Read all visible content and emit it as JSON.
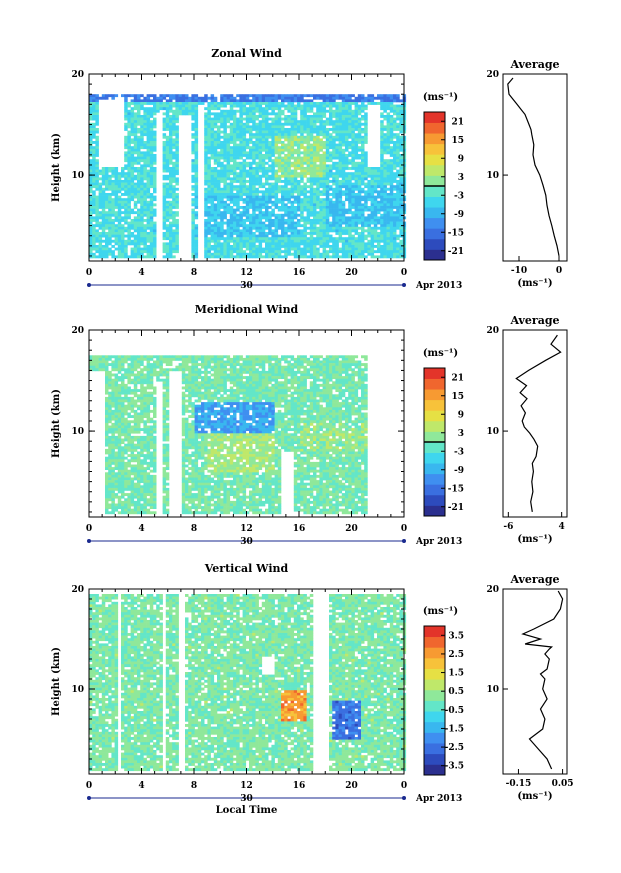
{
  "colors": {
    "colormap": [
      "#2b2f8f",
      "#2d4bbd",
      "#3a6fe0",
      "#3f8ff0",
      "#39b7ef",
      "#3fd6ee",
      "#63e6c8",
      "#8fe89a",
      "#bfe86a",
      "#e6e044",
      "#f7c23a",
      "#f79a32",
      "#f0662e",
      "#e3342a"
    ]
  },
  "panels": [
    {
      "key": "zonal",
      "title": "Zonal Wind",
      "ylabel": "Height (km)",
      "yticks": [
        "20",
        "10"
      ],
      "xticks": [
        "0",
        "4",
        "8",
        "12",
        "16",
        "20",
        "0"
      ],
      "date_day": "30",
      "date_label": "Apr 2013",
      "xlabel": "",
      "cbar_unit": "(ms⁻¹)",
      "cbar_ticks": [
        "21",
        "15",
        "9",
        "3",
        "-3",
        "-9",
        "-15",
        "-21"
      ],
      "avg_title": "Average",
      "avg_yticks": [
        "20",
        "10"
      ],
      "avg_xticks": [
        "-10",
        "0"
      ],
      "avg_xlabel": "(ms⁻¹)"
    },
    {
      "key": "meridional",
      "title": "Meridional Wind",
      "ylabel": "Height (km)",
      "yticks": [
        "20",
        "10"
      ],
      "xticks": [
        "0",
        "4",
        "8",
        "12",
        "16",
        "20",
        "0"
      ],
      "date_day": "30",
      "date_label": "Apr 2013",
      "xlabel": "",
      "cbar_unit": "(ms⁻¹)",
      "cbar_ticks": [
        "21",
        "15",
        "9",
        "3",
        "-3",
        "-9",
        "-15",
        "-21"
      ],
      "avg_title": "Average",
      "avg_yticks": [
        "20",
        "10"
      ],
      "avg_xticks": [
        "-6",
        "4"
      ],
      "avg_xlabel": "(ms⁻¹)"
    },
    {
      "key": "vertical",
      "title": "Vertical Wind",
      "ylabel": "Height (km)",
      "yticks": [
        "20",
        "10"
      ],
      "xticks": [
        "0",
        "4",
        "8",
        "12",
        "16",
        "20",
        "0"
      ],
      "date_day": "30",
      "date_label": "Apr 2013",
      "xlabel": "Local Time",
      "cbar_unit": "(ms⁻¹)",
      "cbar_ticks": [
        "3.5",
        "2.5",
        "1.5",
        "0.5",
        "-0.5",
        "-1.5",
        "-2.5",
        "-3.5"
      ],
      "avg_title": "Average",
      "avg_yticks": [
        "20",
        "10"
      ],
      "avg_xticks": [
        "-0.15",
        "0.05"
      ],
      "avg_xlabel": "(ms⁻¹)"
    }
  ],
  "chart_data": [
    {
      "type": "heatmap",
      "title": "Zonal Wind",
      "xlabel": "",
      "ylabel": "Height (km)",
      "xlim": [
        0,
        24
      ],
      "ylim": [
        1.5,
        20
      ],
      "x_units": "local time (h), 30 Apr 2013",
      "colorbar_range": [
        -24,
        24
      ],
      "colorbar_unit": "(ms⁻¹)",
      "data_cutoff_km": 18,
      "blocks": [
        {
          "x": [
            0,
            24
          ],
          "y": [
            2,
            17.5
          ],
          "value": -4
        },
        {
          "x": [
            8,
            16
          ],
          "y": [
            4,
            8
          ],
          "value": -7
        },
        {
          "x": [
            18,
            24
          ],
          "y": [
            5,
            9
          ],
          "value": -7
        },
        {
          "x": [
            14,
            18
          ],
          "y": [
            10,
            14
          ],
          "value": 2
        },
        {
          "x": [
            0,
            24
          ],
          "y": [
            17.3,
            18
          ],
          "value": -14
        }
      ],
      "gaps": [
        {
          "x": [
            0.5,
            2.5
          ],
          "y": [
            11,
            17.5
          ]
        },
        {
          "x": [
            5,
            5.4
          ],
          "y": [
            2,
            16
          ]
        },
        {
          "x": [
            6.8,
            7.8
          ],
          "y": [
            2,
            16
          ]
        },
        {
          "x": [
            8.2,
            8.6
          ],
          "y": [
            2,
            17
          ]
        },
        {
          "x": [
            21,
            22
          ],
          "y": [
            11,
            17
          ]
        }
      ]
    },
    {
      "type": "line",
      "title": "Average",
      "xlabel": "(ms⁻¹)",
      "x_range": [
        -14,
        2
      ],
      "ylim": [
        1.5,
        20
      ],
      "x": [
        0,
        -0.5,
        -1.2,
        -1.8,
        -2.5,
        -3,
        -3.3,
        -4,
        -4.8,
        -6,
        -6.5,
        -6.3,
        -6.8,
        -7,
        -7.5,
        -8.5,
        -9.5,
        -10.5,
        -12.5,
        -12.8,
        -11.5
      ],
      "y": [
        2,
        3,
        4,
        5,
        6,
        7,
        8,
        9,
        10,
        11,
        12,
        13,
        14,
        14.5,
        15,
        16,
        16.5,
        17,
        18,
        19,
        19.6
      ]
    },
    {
      "type": "heatmap",
      "title": "Meridional Wind",
      "xlabel": "",
      "ylabel": "Height (km)",
      "xlim": [
        0,
        24
      ],
      "ylim": [
        1.5,
        20
      ],
      "x_units": "local time (h), 30 Apr 2013",
      "colorbar_range": [
        -24,
        24
      ],
      "colorbar_unit": "(ms⁻¹)",
      "data_cutoff_km": 17.5,
      "blocks": [
        {
          "x": [
            0,
            24
          ],
          "y": [
            2,
            17.5
          ],
          "value": 0
        },
        {
          "x": [
            9,
            14
          ],
          "y": [
            6,
            10
          ],
          "value": 3
        },
        {
          "x": [
            8,
            14
          ],
          "y": [
            10,
            13
          ],
          "value": -10
        },
        {
          "x": [
            16,
            21
          ],
          "y": [
            8,
            11
          ],
          "value": 2
        }
      ],
      "gaps": [
        {
          "x": [
            0,
            1
          ],
          "y": [
            2,
            16
          ]
        },
        {
          "x": [
            5,
            5.5
          ],
          "y": [
            2,
            15
          ]
        },
        {
          "x": [
            6,
            7
          ],
          "y": [
            2,
            16
          ]
        },
        {
          "x": [
            14.5,
            15.5
          ],
          "y": [
            2,
            8
          ]
        },
        {
          "x": [
            21,
            24
          ],
          "y": [
            2,
            17.5
          ]
        }
      ]
    },
    {
      "type": "line",
      "title": "Average",
      "xlabel": "(ms⁻¹)",
      "x_range": [
        -7,
        5
      ],
      "ylim": [
        1.5,
        20
      ],
      "x": [
        -1.5,
        -1.8,
        -1.4,
        -1.6,
        -1.3,
        -1.5,
        -0.8,
        -0.5,
        -1.2,
        -2,
        -3,
        -3.4,
        -2.8,
        -3.6,
        -2.5,
        -3.8,
        -2.6,
        -4.5,
        -2.2,
        1,
        3.8,
        2,
        3.2
      ],
      "y": [
        2,
        3,
        4,
        5,
        6,
        6.8,
        7.5,
        8.5,
        9.2,
        9.8,
        10.4,
        11,
        11.8,
        12.5,
        13.2,
        13.8,
        14.5,
        15.2,
        16,
        17,
        17.8,
        18.6,
        19.5
      ]
    },
    {
      "type": "heatmap",
      "title": "Vertical Wind",
      "xlabel": "Local Time",
      "ylabel": "Height (km)",
      "xlim": [
        0,
        24
      ],
      "ylim": [
        1.5,
        20
      ],
      "x_units": "local time (h), 30 Apr 2013",
      "colorbar_range": [
        -4,
        4
      ],
      "colorbar_unit": "(ms⁻¹)",
      "data_cutoff_km": 19.5,
      "blocks": [
        {
          "x": [
            0,
            24
          ],
          "y": [
            2,
            19.5
          ],
          "value": 0.1
        },
        {
          "x": [
            14.5,
            16.5
          ],
          "y": [
            7,
            10
          ],
          "value": 2.5
        },
        {
          "x": [
            18.5,
            20.5
          ],
          "y": [
            5,
            9
          ],
          "value": -2.5
        }
      ],
      "gaps": [
        {
          "x": [
            17,
            18.2
          ],
          "y": [
            1.5,
            20
          ]
        },
        {
          "x": [
            2,
            2.3
          ],
          "y": [
            1.5,
            20
          ]
        },
        {
          "x": [
            5.5,
            5.8
          ],
          "y": [
            1.5,
            20
          ]
        },
        {
          "x": [
            6.8,
            7.1
          ],
          "y": [
            1.5,
            20
          ]
        },
        {
          "x": [
            13,
            14
          ],
          "y": [
            11.5,
            13.5
          ]
        }
      ]
    },
    {
      "type": "line",
      "title": "Average",
      "xlabel": "(ms⁻¹)",
      "x_range": [
        -0.22,
        0.07
      ],
      "ylim": [
        1.5,
        20
      ],
      "x": [
        0.0,
        -0.02,
        -0.06,
        -0.1,
        -0.04,
        -0.03,
        -0.05,
        -0.02,
        -0.04,
        -0.03,
        -0.05,
        -0.02,
        -0.01,
        -0.03,
        -0.01,
        0.0,
        -0.12,
        -0.05,
        -0.13,
        -0.08,
        0.01,
        0.04,
        0.05,
        0.03
      ],
      "y": [
        2,
        3,
        4,
        5,
        6,
        7,
        8,
        9,
        10,
        11,
        11.5,
        12,
        13,
        13.5,
        14,
        14.2,
        14.5,
        15,
        15.5,
        16,
        17,
        18,
        19,
        19.8
      ]
    }
  ]
}
